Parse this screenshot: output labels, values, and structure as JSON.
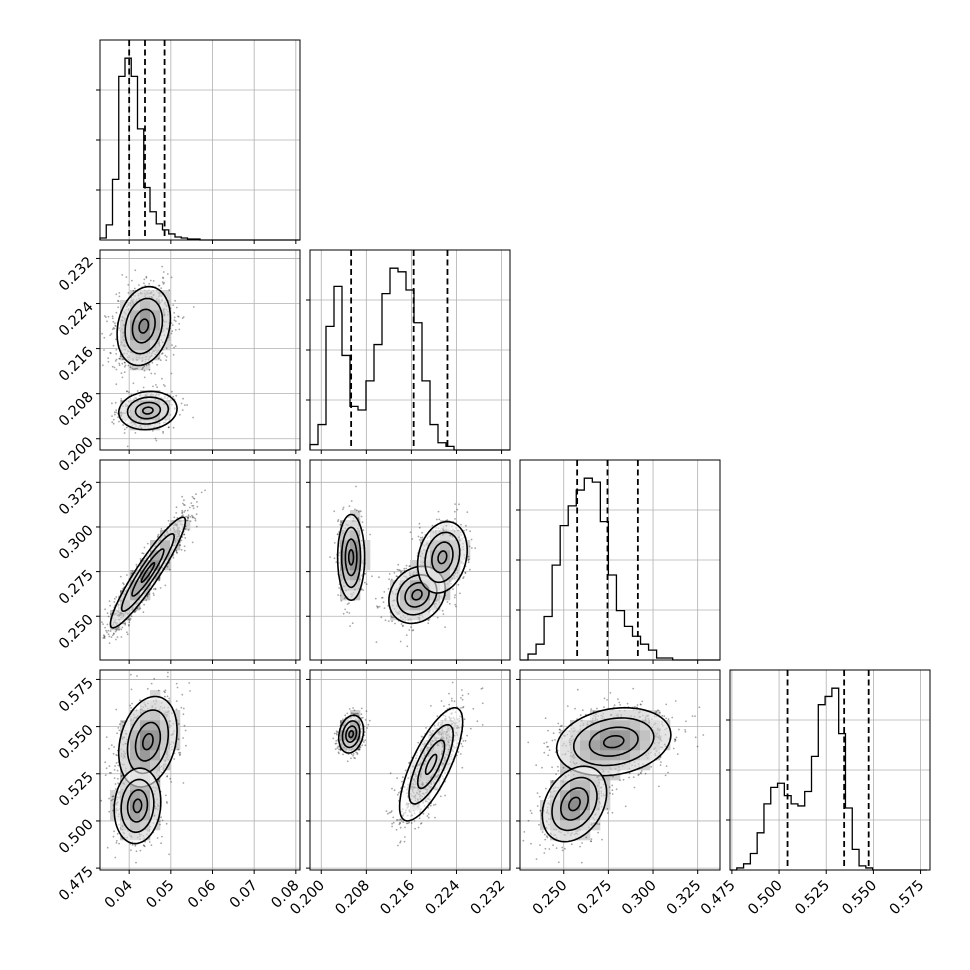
{
  "chart_data": {
    "type": "corner",
    "grid": true,
    "parameters": [
      {
        "name": "p0",
        "xlim": [
          0.033,
          0.081
        ],
        "ticks": [
          0.04,
          0.05,
          0.06,
          0.07,
          0.08
        ],
        "tick_labels": [
          "0.04",
          "0.05",
          "0.06",
          "0.07",
          "0.08"
        ],
        "quantiles": [
          0.04,
          0.0438,
          0.0485
        ],
        "hist": {
          "bin_start": 0.033,
          "bin_width": 0.0015,
          "counts": [
            2,
            15,
            60,
            162,
            180,
            162,
            110,
            52,
            28,
            16,
            10,
            6,
            3,
            2,
            1,
            1,
            0,
            0,
            0,
            0,
            0,
            0,
            0,
            0,
            0,
            0,
            0,
            0,
            0,
            0,
            0,
            0
          ]
        },
        "y_reference": {
          "ylim": [
            0.198,
            0.2335
          ],
          "ticks": [
            0.2,
            0.208,
            0.216,
            0.224,
            0.232
          ]
        }
      },
      {
        "name": "p1",
        "xlim": [
          0.198,
          0.2335
        ],
        "ticks": [
          0.2,
          0.208,
          0.216,
          0.224,
          0.232
        ],
        "tick_labels": [
          "0.200",
          "0.208",
          "0.216",
          "0.224",
          "0.232"
        ],
        "y_ticks": [
          0.2,
          0.208,
          0.216,
          0.224,
          0.232
        ],
        "y_tick_labels": [
          "0.200",
          "0.208",
          "0.216",
          "0.224",
          "0.232"
        ],
        "quantiles": [
          0.2053,
          0.2164,
          0.2224
        ],
        "hist": {
          "bin_start": 0.198,
          "bin_width": 0.00142,
          "counts": [
            3,
            14,
            68,
            90,
            52,
            24,
            22,
            38,
            58,
            86,
            100,
            98,
            88,
            70,
            38,
            14,
            4,
            2,
            0,
            0,
            0,
            0,
            0,
            0,
            0
          ]
        }
      },
      {
        "name": "p2",
        "xlim": [
          0.2255,
          0.3375
        ],
        "ticks": [
          0.25,
          0.275,
          0.3,
          0.325
        ],
        "tick_labels": [
          "0.250",
          "0.275",
          "0.300",
          "0.325"
        ],
        "y_ticks": [
          0.25,
          0.275,
          0.3,
          0.325
        ],
        "y_tick_labels": [
          "0.250",
          "0.275",
          "0.300",
          "0.325"
        ],
        "quantiles": [
          0.2575,
          0.2745,
          0.2915
        ],
        "hist": {
          "bin_start": 0.2255,
          "bin_width": 0.0045,
          "counts": [
            0,
            3,
            8,
            22,
            48,
            68,
            78,
            86,
            92,
            90,
            70,
            43,
            25,
            17,
            12,
            8,
            5,
            1,
            1,
            0,
            0,
            0,
            0,
            0,
            0
          ]
        }
      },
      {
        "name": "p3",
        "xlim": [
          0.474,
          0.58
        ],
        "ticks": [
          0.475,
          0.5,
          0.525,
          0.55,
          0.575
        ],
        "tick_labels": [
          "0.475",
          "0.500",
          "0.525",
          "0.550",
          "0.575"
        ],
        "y_ticks": [
          0.475,
          0.5,
          0.525,
          0.55,
          0.575
        ],
        "y_tick_labels": [
          "0.475",
          "0.500",
          "0.525",
          "0.550",
          "0.575"
        ],
        "quantiles": [
          0.5045,
          0.5345,
          0.5475
        ],
        "hist": {
          "bin_start": 0.474,
          "bin_width": 0.0036,
          "counts": [
            0,
            1,
            3,
            8,
            18,
            32,
            40,
            42,
            36,
            32,
            31,
            38,
            55,
            80,
            84,
            88,
            66,
            30,
            10,
            2,
            1,
            0,
            0,
            0,
            0,
            0,
            0,
            0,
            0
          ]
        }
      }
    ],
    "scatter_components": {
      "1_0": [
        {
          "mx": 0.0435,
          "my": 0.22,
          "sx": 0.0032,
          "sy": 0.0035,
          "rho": 0.2,
          "w": 0.72
        },
        {
          "mx": 0.0445,
          "my": 0.205,
          "sx": 0.0035,
          "sy": 0.0017,
          "rho": 0.1,
          "w": 0.28
        }
      ],
      "2_0": [
        {
          "mx": 0.0445,
          "my": 0.2745,
          "sx": 0.0045,
          "sy": 0.0155,
          "rho": 0.93,
          "w": 1.0
        }
      ],
      "3_0": [
        {
          "mx": 0.0445,
          "my": 0.542,
          "sx": 0.0035,
          "sy": 0.012,
          "rho": 0.25,
          "w": 0.62
        },
        {
          "mx": 0.042,
          "my": 0.508,
          "sx": 0.0028,
          "sy": 0.01,
          "rho": 0.1,
          "w": 0.38
        }
      ],
      "2_1": [
        {
          "mx": 0.2053,
          "my": 0.283,
          "sx": 0.0012,
          "sy": 0.012,
          "rho": 0.0,
          "w": 0.34
        },
        {
          "mx": 0.217,
          "my": 0.262,
          "sx": 0.0025,
          "sy": 0.008,
          "rho": 0.2,
          "w": 0.33
        },
        {
          "mx": 0.2215,
          "my": 0.283,
          "sx": 0.0022,
          "sy": 0.01,
          "rho": 0.2,
          "w": 0.33
        }
      ],
      "3_1": [
        {
          "mx": 0.2053,
          "my": 0.546,
          "sx": 0.0011,
          "sy": 0.005,
          "rho": 0.2,
          "w": 0.36
        },
        {
          "mx": 0.2195,
          "my": 0.53,
          "sx": 0.0028,
          "sy": 0.015,
          "rho": 0.75,
          "w": 0.64
        }
      ],
      "3_2": [
        {
          "mx": 0.278,
          "my": 0.542,
          "sx": 0.016,
          "sy": 0.009,
          "rho": 0.2,
          "w": 0.62
        },
        {
          "mx": 0.256,
          "my": 0.509,
          "sx": 0.009,
          "sy": 0.01,
          "rho": 0.3,
          "w": 0.38
        }
      ]
    }
  }
}
